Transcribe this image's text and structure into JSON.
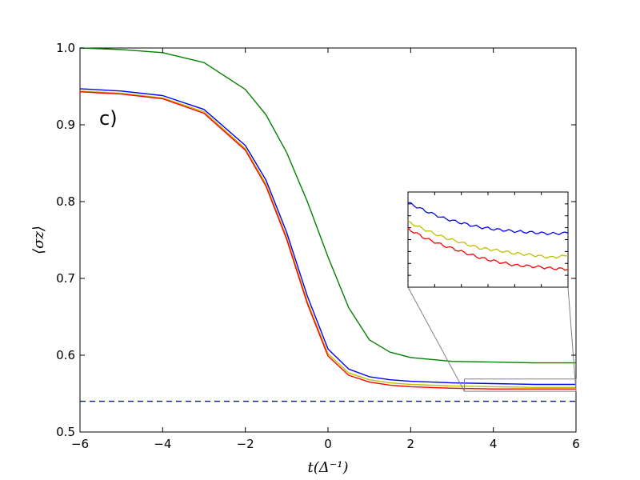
{
  "chart_data": {
    "type": "line",
    "panel_label": "c)",
    "xlabel": "t(Δ⁻¹)",
    "ylabel": "⟨σz⟩",
    "xlim": [
      -6,
      6
    ],
    "ylim": [
      0.5,
      1.0
    ],
    "xticks": [
      -6,
      -4,
      -2,
      0,
      2,
      4,
      6
    ],
    "xtick_labels": [
      "−6",
      "−4",
      "−2",
      "0",
      "2",
      "4",
      "6"
    ],
    "yticks": [
      0.5,
      0.6,
      0.7,
      0.8,
      0.9,
      1.0
    ],
    "ytick_labels": [
      "0.5",
      "0.6",
      "0.7",
      "0.8",
      "0.9",
      "1.0"
    ],
    "grid": false,
    "x": [
      -6,
      -5,
      -4,
      -3,
      -2,
      -1.5,
      -1,
      -0.5,
      0,
      0.5,
      1,
      1.5,
      2,
      3,
      4,
      5,
      6
    ],
    "series": [
      {
        "color": "#008000",
        "style": "solid",
        "values": [
          1.0,
          0.998,
          0.994,
          0.981,
          0.946,
          0.913,
          0.864,
          0.8,
          0.728,
          0.662,
          0.62,
          0.604,
          0.597,
          0.592,
          0.591,
          0.59,
          0.59
        ]
      },
      {
        "color": "#0000ff",
        "style": "solid",
        "values": [
          0.947,
          0.944,
          0.938,
          0.92,
          0.873,
          0.828,
          0.76,
          0.677,
          0.608,
          0.582,
          0.572,
          0.568,
          0.566,
          0.564,
          0.563,
          0.562,
          0.562
        ]
      },
      {
        "color": "#bfbf00",
        "style": "solid",
        "values": [
          0.944,
          0.941,
          0.935,
          0.917,
          0.869,
          0.823,
          0.754,
          0.67,
          0.602,
          0.577,
          0.568,
          0.564,
          0.562,
          0.56,
          0.559,
          0.558,
          0.558
        ]
      },
      {
        "color": "#ff0000",
        "style": "solid",
        "values": [
          0.943,
          0.94,
          0.934,
          0.915,
          0.867,
          0.82,
          0.751,
          0.667,
          0.599,
          0.574,
          0.565,
          0.561,
          0.559,
          0.557,
          0.556,
          0.556,
          0.556
        ]
      },
      {
        "color": "#0000ff",
        "style": "dashed",
        "values": [
          0.54,
          0.54,
          0.54,
          0.54,
          0.54,
          0.54,
          0.54,
          0.54,
          0.54,
          0.54,
          0.54,
          0.54,
          0.54,
          0.54,
          0.54,
          0.54,
          0.54
        ]
      }
    ],
    "inset": {
      "xlim": [
        3.3,
        6.0
      ],
      "ylim": [
        0.553,
        0.569
      ],
      "x": [
        3.3,
        3.6,
        3.9,
        4.2,
        4.5,
        4.8,
        5.1,
        5.4,
        5.7,
        6.0
      ],
      "series": [
        {
          "color": "#0000ff",
          "values": [
            0.5672,
            0.5658,
            0.5646,
            0.5638,
            0.5631,
            0.5627,
            0.5624,
            0.5622,
            0.562,
            0.5621
          ]
        },
        {
          "color": "#bfbf00",
          "values": [
            0.564,
            0.5626,
            0.5614,
            0.5605,
            0.5596,
            0.5592,
            0.5587,
            0.5584,
            0.558,
            0.5583
          ]
        },
        {
          "color": "#ff0000",
          "values": [
            0.5628,
            0.5612,
            0.56,
            0.559,
            0.558,
            0.5573,
            0.5567,
            0.5565,
            0.5562,
            0.556
          ]
        }
      ]
    }
  }
}
